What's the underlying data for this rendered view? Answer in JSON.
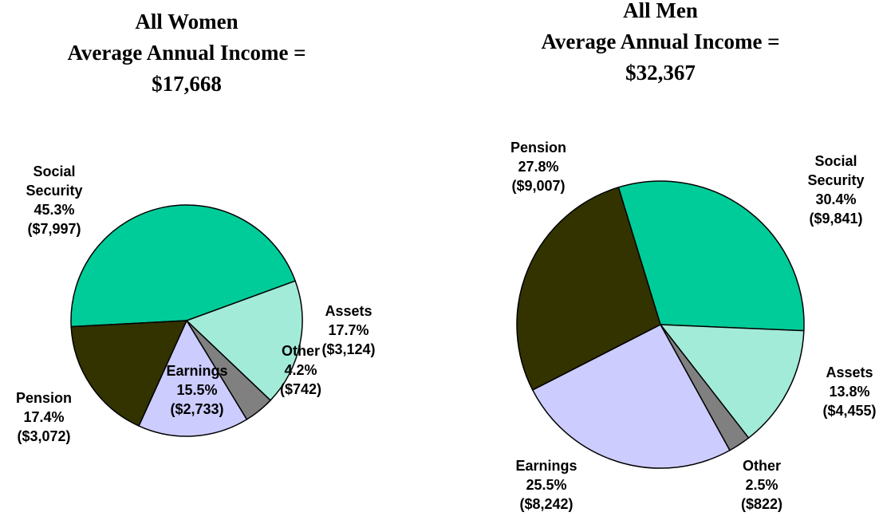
{
  "chart_data": [
    {
      "type": "pie",
      "title": [
        "All Women",
        "Average Annual Income =",
        "$17,668"
      ],
      "categories": [
        "Social Security",
        "Assets",
        "Other",
        "Earnings",
        "Pension"
      ],
      "values": [
        45.3,
        17.7,
        4.2,
        15.5,
        17.4
      ],
      "value_labels": [
        "45.3%",
        "17.7%",
        "4.2%",
        "15.5%",
        "17.4%"
      ],
      "amounts": [
        7997,
        3124,
        742,
        2733,
        3072
      ],
      "amount_labels": [
        "($7,997)",
        "($3,124)",
        "($742)",
        "($2,733)",
        "($3,072)"
      ],
      "colors": [
        "#00cc99",
        "#a3ebd9",
        "#808080",
        "#ccccff",
        "#333300"
      ]
    },
    {
      "type": "pie",
      "title": [
        "All Men",
        "Average Annual Income =",
        "$32,367"
      ],
      "categories": [
        "Social Security",
        "Assets",
        "Other",
        "Earnings",
        "Pension"
      ],
      "values": [
        30.4,
        13.8,
        2.5,
        25.5,
        27.8
      ],
      "value_labels": [
        "30.4%",
        "13.8%",
        "2.5%",
        "25.5%",
        "27.8%"
      ],
      "amounts": [
        9841,
        4455,
        822,
        8242,
        9007
      ],
      "amount_labels": [
        "($9,841)",
        "($4,455)",
        "($822)",
        "($8,242)",
        "($9,007)"
      ],
      "colors": [
        "#00cc99",
        "#a3ebd9",
        "#808080",
        "#ccccff",
        "#333300"
      ]
    }
  ]
}
